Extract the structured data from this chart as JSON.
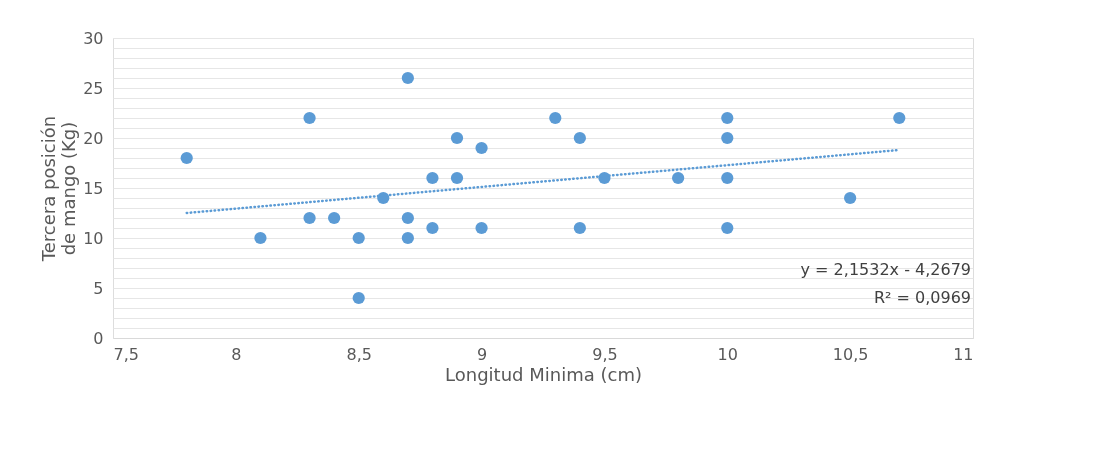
{
  "chart_data": {
    "type": "scatter",
    "xlabel": "Longitud Minima (cm)",
    "ylabel": "Tercera posición de mango (Kg)",
    "series": [
      {
        "color": "#5b9bd5",
        "marker": "circle",
        "x": [
          7.8,
          8.1,
          8.3,
          8.3,
          8.4,
          8.5,
          8.5,
          8.6,
          8.7,
          8.7,
          8.7,
          8.8,
          8.8,
          8.9,
          8.9,
          9.0,
          9.0,
          9.3,
          9.4,
          9.4,
          9.5,
          9.8,
          10,
          10,
          10,
          10,
          10.5,
          10.7
        ],
        "values": [
          18,
          10,
          22,
          12,
          12,
          10,
          4,
          14,
          26,
          12,
          10,
          16,
          11,
          20,
          16,
          19,
          11,
          22,
          20,
          11,
          16,
          16,
          22,
          20,
          16,
          11,
          14,
          22
        ]
      },
      {
        "type": "line",
        "color": "#5b9bd5",
        "line_style": "dotted",
        "x": [
          7.8,
          10.7
        ],
        "values": [
          12.5,
          18.8
        ]
      }
    ],
    "annotations": [
      "y = 2,1532x - 4,2679",
      "R² = 0,0969"
    ],
    "xlim": [
      7.5,
      11
    ],
    "xticks": [
      {
        "value": 7.5,
        "label": "7,5"
      },
      8,
      {
        "value": 8.5,
        "label": "8,5"
      },
      9,
      {
        "value": 9.5,
        "label": "9,5"
      },
      10,
      {
        "value": 10.5,
        "label": "10,5"
      },
      11
    ],
    "ylim": [
      0,
      30
    ],
    "yticks": [
      0,
      {
        "value": 1,
        "label": null
      },
      {
        "value": 2,
        "label": null
      },
      {
        "value": 3,
        "label": null
      },
      {
        "value": 4,
        "label": null
      },
      5,
      {
        "value": 6,
        "label": null
      },
      {
        "value": 7,
        "label": null
      },
      {
        "value": 8,
        "label": null
      },
      {
        "value": 9,
        "label": null
      },
      10,
      {
        "value": 11,
        "label": null
      },
      {
        "value": 12,
        "label": null
      },
      {
        "value": 13,
        "label": null
      },
      {
        "value": 14,
        "label": null
      },
      15,
      {
        "value": 16,
        "label": null
      },
      {
        "value": 17,
        "label": null
      },
      {
        "value": 18,
        "label": null
      },
      {
        "value": 19,
        "label": null
      },
      20,
      {
        "value": 21,
        "label": null
      },
      {
        "value": 22,
        "label": null
      },
      {
        "value": 23,
        "label": null
      },
      {
        "value": 24,
        "label": null
      },
      25,
      {
        "value": 26,
        "label": null
      },
      {
        "value": 27,
        "label": null
      },
      {
        "value": 28,
        "label": null
      },
      {
        "value": 29,
        "label": null
      },
      30
    ],
    "grid": "y"
  }
}
